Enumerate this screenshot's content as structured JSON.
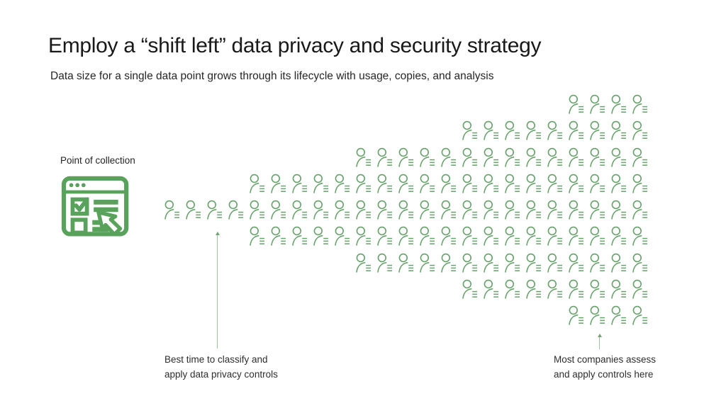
{
  "slide": {
    "title": "Employ a “shift left” data privacy and security strategy",
    "subtitle": "Data size for a single data point grows through its lifecycle with usage, copies, and analysis"
  },
  "point_of_collection": {
    "label": "Point of collection",
    "icon": "browser-form-cursor-icon"
  },
  "pictogram_grid": {
    "icon": "person-data-icon",
    "rows": [
      4,
      9,
      14,
      19,
      23,
      19,
      14,
      9,
      4
    ],
    "total_icons": 115,
    "shape": "arrow expanding left-to-right, right-aligned rows"
  },
  "annotations": {
    "left": {
      "line1": "Best time to classify and",
      "line2": "apply data privacy controls"
    },
    "right": {
      "line1": "Most companies assess",
      "line2": "and apply controls here"
    }
  },
  "colors": {
    "background": "#ffffff",
    "accent_green": "#58a25c",
    "pictogram_green": "#67a26b",
    "arrow_green": "#9cc59f",
    "arrow_head_green": "#6fa873",
    "title_text": "#191919",
    "body_text": "#2e2e2e"
  }
}
